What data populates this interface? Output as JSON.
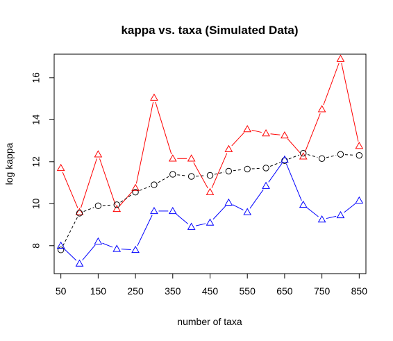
{
  "chart_data": {
    "type": "line",
    "title": "kappa vs. taxa (Simulated Data)",
    "xlabel": "number of taxa",
    "ylabel": "log kappa",
    "x": [
      50,
      100,
      150,
      200,
      250,
      300,
      350,
      400,
      450,
      500,
      550,
      600,
      650,
      700,
      750,
      800,
      850
    ],
    "xticks": [
      50,
      150,
      250,
      350,
      450,
      550,
      650,
      750,
      850
    ],
    "xticklabels": [
      "50",
      "150",
      "250",
      "350",
      "450",
      "550",
      "650",
      "750",
      "850"
    ],
    "xlim": [
      32,
      868
    ],
    "yticks": [
      8,
      10,
      12,
      14,
      16
    ],
    "yticklabels": [
      "8",
      "10",
      "12",
      "14",
      "16"
    ],
    "ylim": [
      6.67,
      17.12
    ],
    "grid": false,
    "legend": "none",
    "series": [
      {
        "color": "#ff0000",
        "marker": "triangle",
        "linestyle": "solid",
        "values": [
          11.7,
          9.6,
          12.35,
          9.75,
          10.75,
          15.05,
          12.15,
          12.15,
          10.55,
          12.6,
          13.55,
          13.35,
          13.25,
          12.25,
          14.5,
          16.9,
          12.75
        ]
      },
      {
        "color": "#000000",
        "marker": "circle",
        "linestyle": "dashed",
        "values": [
          7.8,
          9.55,
          9.9,
          9.95,
          10.55,
          10.9,
          11.4,
          11.3,
          11.35,
          11.55,
          11.65,
          11.7,
          12.05,
          12.4,
          12.15,
          12.35,
          12.3
        ]
      },
      {
        "color": "#0000ff",
        "marker": "triangle",
        "linestyle": "solid",
        "values": [
          8.0,
          7.15,
          8.2,
          7.85,
          7.8,
          9.65,
          9.65,
          8.9,
          9.1,
          10.05,
          9.6,
          10.85,
          12.1,
          9.95,
          9.25,
          9.45,
          10.15
        ]
      }
    ]
  }
}
